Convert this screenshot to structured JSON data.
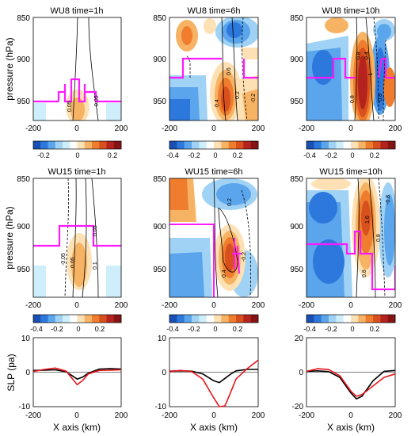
{
  "figure": {
    "ylabel_pressure": "pressure (hPa)",
    "ylabel_slp": "SLP (pa)",
    "xlabel": "X axis (km)"
  },
  "colors": {
    "magenta": "#ff19ff",
    "black": "#000000",
    "red": "#e8141a",
    "colormap": [
      "#1a50b4",
      "#2d78dc",
      "#5aa5eb",
      "#a0d2f5",
      "#cdeefa",
      "#ffffff",
      "#fde1b4",
      "#f7b364",
      "#ef7d2d",
      "#d7501e",
      "#b4231e",
      "#871414"
    ]
  },
  "chart_data": [
    {
      "type": "heatmap",
      "id": "p1",
      "title": "WU8 time=1h",
      "xlim": [
        -200,
        200
      ],
      "ylim": [
        850,
        975
      ],
      "y_reversed": true,
      "xticks": [
        -200,
        0,
        200
      ],
      "yticks": [
        850,
        900,
        950
      ],
      "colorbar": {
        "range": [
          -0.3,
          0.3
        ],
        "ticks": [
          -0.2,
          0,
          0.2
        ]
      },
      "contour_labels": [
        "0.05",
        "0.05"
      ]
    },
    {
      "type": "heatmap",
      "id": "p2",
      "title": "WU8 time=6h",
      "xlim": [
        -200,
        200
      ],
      "ylim": [
        850,
        975
      ],
      "y_reversed": true,
      "xticks": [
        -200,
        0,
        200
      ],
      "yticks": [
        850,
        900,
        950
      ],
      "colorbar": {
        "range": [
          -0.4,
          0.4
        ],
        "ticks": [
          -0.4,
          -0.2,
          0,
          0.2
        ]
      },
      "contour_labels": [
        "0.4",
        "0.2",
        "0.6",
        "-0.2"
      ]
    },
    {
      "type": "heatmap",
      "id": "p3",
      "title": "WU8 time=10h",
      "xlim": [
        -200,
        200
      ],
      "ylim": [
        850,
        975
      ],
      "y_reversed": true,
      "xticks": [
        -200,
        0,
        200
      ],
      "yticks": [
        850,
        900,
        950
      ],
      "colorbar": {
        "range": [
          -0.4,
          0.4
        ],
        "ticks": [
          -0.4,
          -0.2,
          0,
          0.2
        ]
      },
      "contour_labels": [
        "0.8",
        "-1",
        "0.4",
        "0.8",
        "-0.8"
      ]
    },
    {
      "type": "heatmap",
      "id": "p4",
      "title": "WU15 time=1h",
      "xlim": [
        -200,
        200
      ],
      "ylim": [
        850,
        975
      ],
      "y_reversed": true,
      "xticks": [
        -200,
        0,
        200
      ],
      "yticks": [
        850,
        900,
        950
      ],
      "colorbar": {
        "range": [
          -0.4,
          0.4
        ],
        "ticks": [
          -0.4,
          -0.2,
          0,
          0.2
        ]
      },
      "contour_labels": [
        "0.05",
        "-0.05",
        "0.1",
        "0.05"
      ]
    },
    {
      "type": "heatmap",
      "id": "p5",
      "title": "WU15 time=6h",
      "xlim": [
        -200,
        200
      ],
      "ylim": [
        850,
        975
      ],
      "y_reversed": true,
      "xticks": [
        -200,
        0,
        200
      ],
      "yticks": [
        850,
        900,
        950
      ],
      "colorbar": {
        "range": [
          -0.4,
          0.4
        ],
        "ticks": [
          -0.4,
          -0.2,
          0,
          0.2
        ]
      },
      "contour_labels": [
        "0.2",
        "-0.2",
        "0.4"
      ]
    },
    {
      "type": "heatmap",
      "id": "p6",
      "title": "WU15 time=10h",
      "xlim": [
        -200,
        200
      ],
      "ylim": [
        850,
        975
      ],
      "y_reversed": true,
      "xticks": [
        -200,
        0,
        200
      ],
      "yticks": [
        850,
        900,
        950
      ],
      "colorbar": {
        "range": [
          -0.4,
          0.4
        ],
        "ticks": [
          -0.4,
          -0.2,
          0,
          0.2
        ]
      },
      "contour_labels": [
        "1.6",
        "0.8",
        "-0.8",
        "0.8"
      ]
    },
    {
      "type": "line",
      "id": "s1",
      "xlim": [
        -200,
        200
      ],
      "ylim": [
        -10,
        10
      ],
      "xticks": [
        -200,
        0,
        200
      ],
      "yticks": [
        -10,
        0,
        10
      ],
      "series": [
        {
          "color": "#000000",
          "x": [
            -200,
            -150,
            -100,
            -50,
            0,
            25,
            50,
            100,
            150,
            200
          ],
          "values": [
            0.5,
            0.6,
            0.7,
            0.1,
            -2.0,
            -1.4,
            -0.3,
            0.9,
            1.0,
            0.9
          ]
        },
        {
          "color": "#e8141a",
          "x": [
            -200,
            -150,
            -100,
            -50,
            0,
            25,
            50,
            100,
            150,
            200
          ],
          "values": [
            0.2,
            0.8,
            1.2,
            0.3,
            -3.6,
            -2.4,
            -0.5,
            0.5,
            0.6,
            0.7
          ]
        }
      ]
    },
    {
      "type": "line",
      "id": "s2",
      "xlim": [
        -200,
        200
      ],
      "ylim": [
        -10,
        10
      ],
      "xticks": [
        -200,
        0,
        200
      ],
      "yticks": [
        -10,
        0,
        10
      ],
      "series": [
        {
          "color": "#000000",
          "x": [
            -200,
            -150,
            -100,
            -50,
            0,
            25,
            50,
            75,
            100,
            150,
            200
          ],
          "values": [
            0.3,
            0.4,
            0.3,
            -0.5,
            -2.5,
            -3.0,
            -1.8,
            -0.6,
            0.4,
            0.8,
            0.8
          ]
        },
        {
          "color": "#e8141a",
          "x": [
            -200,
            -150,
            -100,
            -50,
            0,
            25,
            50,
            75,
            100,
            150,
            200
          ],
          "values": [
            0.2,
            0.5,
            0.2,
            -2.0,
            -7.5,
            -10.0,
            -9.8,
            -6.0,
            -2.0,
            1.0,
            3.5
          ]
        }
      ]
    },
    {
      "type": "line",
      "id": "s3",
      "xlim": [
        -200,
        200
      ],
      "ylim": [
        -20,
        20
      ],
      "xticks": [
        -200,
        0,
        200
      ],
      "yticks": [
        -20,
        0,
        20
      ],
      "series": [
        {
          "color": "#000000",
          "x": [
            -200,
            -150,
            -100,
            -50,
            0,
            25,
            50,
            100,
            150,
            200
          ],
          "values": [
            0.5,
            0.8,
            0.3,
            -3.0,
            -12.0,
            -15.5,
            -14.0,
            -5.0,
            0.5,
            1.0
          ]
        },
        {
          "color": "#e8141a",
          "x": [
            -200,
            -150,
            -100,
            -50,
            0,
            25,
            50,
            100,
            150,
            200
          ],
          "values": [
            0.5,
            2.0,
            1.5,
            -2.0,
            -11.0,
            -14.0,
            -13.0,
            -8.0,
            -3.0,
            -1.0
          ]
        }
      ]
    }
  ]
}
